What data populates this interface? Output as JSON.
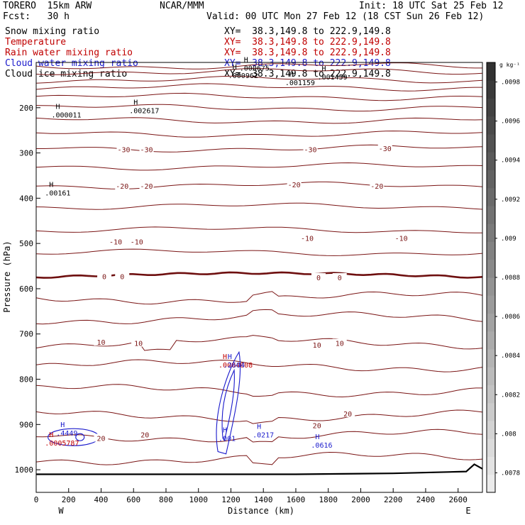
{
  "header": {
    "model": "TORERO  15km ARW",
    "center": "NCAR/MMM",
    "init": "Init: 18 UTC Sat 25 Feb 12",
    "fcst": "Fcst:   30 h",
    "valid": "Valid: 00 UTC Mon 27 Feb 12 (18 CST Sun 26 Feb 12)"
  },
  "fields": [
    {
      "name": "Snow mixing ratio",
      "xy": "XY=  38.3,149.8 to 222.9,149.8",
      "color": "#000000"
    },
    {
      "name": "Temperature",
      "xy": "XY=  38.3,149.8 to 222.9,149.8",
      "color": "#c00000"
    },
    {
      "name": "Rain water mixing ratio",
      "xy": "XY=  38.3,149.8 to 222.9,149.8",
      "color": "#c00000"
    },
    {
      "name": "Cloud water mixing ratio",
      "xy": "XY=  38.3,149.8 to 222.9,149.8",
      "color": "#1a1acc"
    },
    {
      "name": "Cloud ice mixing ratio",
      "xy": "XY=  38.3,149.8 to 222.9,149.8",
      "color": "#000000"
    }
  ],
  "colors": {
    "temperature": "#7a1414",
    "freezing_level": "#6e0f0f",
    "cloud_water": "#1a1acc",
    "terrain": "#000000"
  },
  "chart_data": {
    "type": "cross-section",
    "xlabel": "Distance (km)",
    "ylabel": "Pressure (hPa)",
    "x_range": [
      0,
      2750
    ],
    "y_range": [
      100,
      1050
    ],
    "y_axis_inverted": true,
    "x_ticks": [
      0,
      200,
      400,
      600,
      800,
      1000,
      1200,
      1400,
      1600,
      1800,
      2000,
      2200,
      2400,
      2600
    ],
    "y_ticks": [
      200,
      300,
      400,
      500,
      600,
      700,
      800,
      900,
      1000
    ],
    "endpoints": {
      "left": "W",
      "right": "E"
    },
    "colorbar": {
      "unit": "g kg⁻¹",
      "ticks": [
        ".0078",
        ".008",
        ".0082",
        ".0084",
        ".0086",
        ".0088",
        ".009",
        ".0092",
        ".0094",
        ".0096",
        ".0098"
      ],
      "range": [
        0.0077,
        0.0099
      ]
    },
    "temperature_labels": [
      {
        "value": "-30",
        "x": 540,
        "p": 292
      },
      {
        "value": "-30",
        "x": 680,
        "p": 292
      },
      {
        "value": "-30",
        "x": 1690,
        "p": 292
      },
      {
        "value": "-30",
        "x": 2150,
        "p": 290
      },
      {
        "value": "-20",
        "x": 530,
        "p": 373
      },
      {
        "value": "-20",
        "x": 680,
        "p": 373
      },
      {
        "value": "-20",
        "x": 1590,
        "p": 370
      },
      {
        "value": "-20",
        "x": 2100,
        "p": 373
      },
      {
        "value": "-10",
        "x": 490,
        "p": 496
      },
      {
        "value": "-10",
        "x": 620,
        "p": 496
      },
      {
        "value": "-10",
        "x": 1670,
        "p": 488
      },
      {
        "value": "-10",
        "x": 2250,
        "p": 488
      },
      {
        "value": "0",
        "x": 420,
        "p": 573
      },
      {
        "value": "0",
        "x": 530,
        "p": 573
      },
      {
        "value": "0",
        "x": 1740,
        "p": 575
      },
      {
        "value": "0",
        "x": 1870,
        "p": 575
      },
      {
        "value": "10",
        "x": 400,
        "p": 718
      },
      {
        "value": "10",
        "x": 630,
        "p": 720
      },
      {
        "value": "10",
        "x": 1730,
        "p": 724
      },
      {
        "value": "10",
        "x": 1870,
        "p": 720
      },
      {
        "value": "20",
        "x": 400,
        "p": 930
      },
      {
        "value": "20",
        "x": 670,
        "p": 922
      },
      {
        "value": "20",
        "x": 1730,
        "p": 902
      },
      {
        "value": "20",
        "x": 1920,
        "p": 876
      }
    ],
    "snow_maxima": [
      {
        "label": "H",
        "value": ".000675",
        "x": 1280,
        "p": 112
      },
      {
        "label": "H",
        "value": ".000962",
        "x": 1210,
        "p": 128
      },
      {
        "label": "H",
        "value": ".001159",
        "x": 1560,
        "p": 144
      },
      {
        "label": "H",
        "value": ".001459",
        "x": 1760,
        "p": 131
      },
      {
        "label": "H",
        "value": ".000011",
        "x": 120,
        "p": 215
      },
      {
        "label": "H",
        "value": ".002617",
        "x": 600,
        "p": 206
      },
      {
        "label": "H",
        "value": ".00161",
        "x": 80,
        "p": 388
      }
    ],
    "rain_maxima": [
      {
        "label": "H",
        "value": ".0005787",
        "x": 80,
        "p": 940
      },
      {
        "label": "H",
        "value": ".0004008",
        "x": 1150,
        "p": 768
      }
    ],
    "cloud_water_maxima": [
      {
        "label": "H",
        "value": ".4449",
        "x": 150,
        "p": 918
      },
      {
        "label": "H",
        "value": ".2604",
        "x": 1180,
        "p": 768
      },
      {
        "label": "H",
        "value": ".001",
        "x": 1150,
        "p": 930
      },
      {
        "label": "H",
        "value": ".0217",
        "x": 1360,
        "p": 922
      },
      {
        "label": "H",
        "value": ".0616",
        "x": 1720,
        "p": 945
      }
    ]
  }
}
